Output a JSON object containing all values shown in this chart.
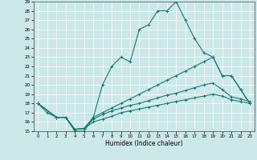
{
  "xlabel": "Humidex (Indice chaleur)",
  "xlim": [
    -0.5,
    23.5
  ],
  "ylim": [
    15,
    29
  ],
  "yticks": [
    15,
    16,
    17,
    18,
    19,
    20,
    21,
    22,
    23,
    24,
    25,
    26,
    27,
    28,
    29
  ],
  "xticks": [
    0,
    1,
    2,
    3,
    4,
    5,
    6,
    7,
    8,
    9,
    10,
    11,
    12,
    13,
    14,
    15,
    16,
    17,
    18,
    19,
    20,
    21,
    22,
    23
  ],
  "bg_color": "#cce8e8",
  "line_color": "#1a7a6e",
  "grid_color": "#ffffff",
  "line0_x": [
    0,
    1,
    2,
    3,
    4,
    5,
    6,
    7,
    8,
    9,
    10,
    11,
    12,
    13,
    14,
    15,
    16,
    17,
    18,
    19,
    20,
    21,
    22,
    23
  ],
  "line0_y": [
    18,
    17,
    16.5,
    16.5,
    15,
    15,
    16.5,
    20,
    22,
    23,
    22.5,
    26,
    26.5,
    28,
    28,
    29,
    27,
    25,
    23.5,
    23,
    21,
    21,
    19.5,
    18
  ],
  "line1_x": [
    0,
    2,
    3,
    4,
    5,
    6,
    7,
    8,
    9,
    10,
    11,
    12,
    13,
    14,
    15,
    16,
    17,
    18,
    19,
    20,
    21,
    22,
    23
  ],
  "line1_y": [
    18,
    16.5,
    16.5,
    15.2,
    15.3,
    16.5,
    17,
    17.5,
    18,
    18.5,
    19,
    19.5,
    20,
    20.5,
    21,
    21.5,
    22,
    22.5,
    23,
    21,
    21,
    19.5,
    18
  ],
  "line2_x": [
    0,
    2,
    3,
    4,
    5,
    6,
    7,
    8,
    9,
    10,
    11,
    12,
    13,
    14,
    15,
    16,
    17,
    18,
    19,
    20,
    21,
    22,
    23
  ],
  "line2_y": [
    18,
    16.5,
    16.5,
    15.2,
    15.3,
    16.3,
    16.8,
    17.2,
    17.5,
    17.8,
    18,
    18.3,
    18.6,
    18.9,
    19.1,
    19.4,
    19.7,
    20,
    20.2,
    19.5,
    18.7,
    18.5,
    18.2
  ],
  "line3_x": [
    0,
    2,
    3,
    4,
    5,
    6,
    7,
    8,
    9,
    10,
    11,
    12,
    13,
    14,
    15,
    16,
    17,
    18,
    19,
    20,
    21,
    22,
    23
  ],
  "line3_y": [
    18,
    16.5,
    16.5,
    15.2,
    15.3,
    16,
    16.3,
    16.6,
    17,
    17.2,
    17.4,
    17.6,
    17.8,
    18,
    18.2,
    18.4,
    18.6,
    18.8,
    19,
    18.8,
    18.4,
    18.2,
    18
  ]
}
